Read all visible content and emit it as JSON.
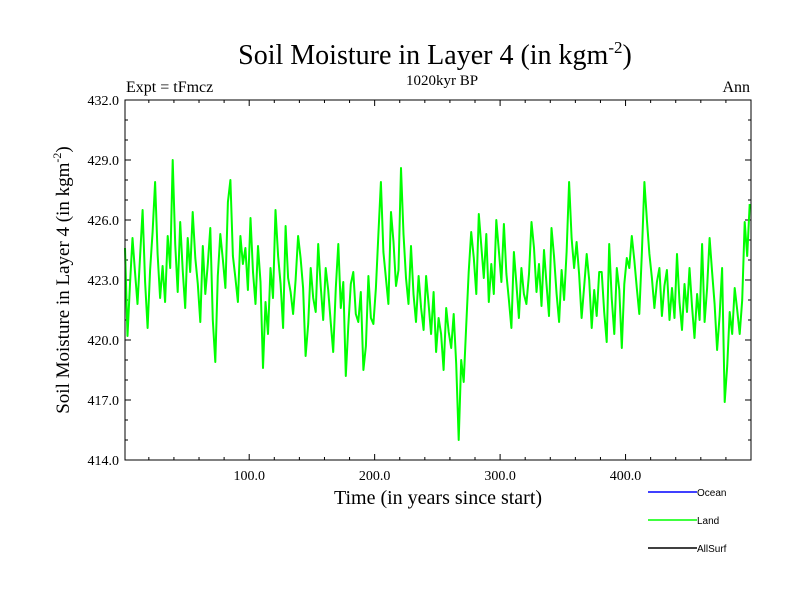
{
  "chart_data": {
    "type": "line",
    "title": "Soil Moisture in Layer 4 (in kgm",
    "title_sup": "-2",
    "title_suffix": ")",
    "subtitle": "1020kyr BP",
    "left_label": "Expt = tFmcz",
    "right_label": "Ann",
    "xlabel": "Time (in years since start)",
    "ylabel": "Soil Moisture in Layer 4 (in kgm",
    "ylabel_sup": "-2",
    "ylabel_suffix": ")",
    "xlim": [
      1,
      500
    ],
    "ylim": [
      414.0,
      432.0
    ],
    "x_ticks": [
      100,
      200,
      300,
      400
    ],
    "x_tick_labels": [
      "100.0",
      "200.0",
      "300.0",
      "400.0"
    ],
    "y_ticks": [
      414,
      417,
      420,
      423,
      426,
      429,
      432
    ],
    "y_tick_labels": [
      "414.0",
      "417.0",
      "420.0",
      "423.0",
      "426.0",
      "429.0",
      "432.0"
    ],
    "legend": [
      {
        "name": "Ocean",
        "color": "#0000ff"
      },
      {
        "name": "Land",
        "color": "#00ff00"
      },
      {
        "name": "AllSurf",
        "color": "#000000"
      }
    ],
    "series": [
      {
        "name": "Land",
        "color": "#00ff00",
        "x_start": 1,
        "x_step": 2,
        "values": [
          424.6,
          420.2,
          422.8,
          425.1,
          423.4,
          421.8,
          424.2,
          426.5,
          422.9,
          420.6,
          423.5,
          425.4,
          427.9,
          424.3,
          422.1,
          423.7,
          421.9,
          425.2,
          423.6,
          429.0,
          424.8,
          422.4,
          425.9,
          423.5,
          421.6,
          425.1,
          423.4,
          426.4,
          424.1,
          422.8,
          420.9,
          424.7,
          422.3,
          423.8,
          425.6,
          421.0,
          418.9,
          423.2,
          425.3,
          424.0,
          422.6,
          426.9,
          428.0,
          424.2,
          423.1,
          421.9,
          425.2,
          423.8,
          424.6,
          422.5,
          426.1,
          423.4,
          421.8,
          424.7,
          422.9,
          418.6,
          421.9,
          420.3,
          423.6,
          422.1,
          426.5,
          424.2,
          422.8,
          420.6,
          425.7,
          423.1,
          422.4,
          421.3,
          423.0,
          425.2,
          424.1,
          422.6,
          419.2,
          420.8,
          423.6,
          422.1,
          421.4,
          424.8,
          422.7,
          421.0,
          423.6,
          422.5,
          420.9,
          419.4,
          422.6,
          424.8,
          421.6,
          422.9,
          418.2,
          420.7,
          422.8,
          423.4,
          421.3,
          420.9,
          422.4,
          418.5,
          419.7,
          423.2,
          421.1,
          420.8,
          422.6,
          425.3,
          427.9,
          424.4,
          423.1,
          421.8,
          426.4,
          424.9,
          422.7,
          423.5,
          428.6,
          425.3,
          423.1,
          421.8,
          424.7,
          422.3,
          420.9,
          423.2,
          421.6,
          420.5,
          423.2,
          421.8,
          420.3,
          422.4,
          419.4,
          421.1,
          420.3,
          418.5,
          421.6,
          420.4,
          419.6,
          421.3,
          418.8,
          415.0,
          419.0,
          417.9,
          420.7,
          423.4,
          425.4,
          424.1,
          422.3,
          426.3,
          424.7,
          423.1,
          425.3,
          421.9,
          423.8,
          422.3,
          426.0,
          424.5,
          422.9,
          425.8,
          423.3,
          422.0,
          420.6,
          424.4,
          422.8,
          421.1,
          423.6,
          422.3,
          421.8,
          423.3,
          425.9,
          424.6,
          422.4,
          423.8,
          421.7,
          424.5,
          422.8,
          421.2,
          425.6,
          424.2,
          422.3,
          420.9,
          423.5,
          422.0,
          424.4,
          427.9,
          425.1,
          423.6,
          424.9,
          423.3,
          421.1,
          422.7,
          424.3,
          423.0,
          420.6,
          422.5,
          421.2,
          423.4,
          423.4,
          421.4,
          419.9,
          424.8,
          422.1,
          420.3,
          423.6,
          422.5,
          419.6,
          422.8,
          424.1,
          423.6,
          425.2,
          424.0,
          422.6,
          421.3,
          424.4,
          427.9,
          426.0,
          424.3,
          423.1,
          421.6,
          422.9,
          423.6,
          421.2,
          422.7,
          423.5,
          421.0,
          422.6,
          421.1,
          424.3,
          421.9,
          420.5,
          422.8,
          421.4,
          423.6,
          421.7,
          420.1,
          422.3,
          421.0,
          424.8,
          420.9,
          422.6,
          425.1,
          423.4,
          421.8,
          419.5,
          421.2,
          423.6,
          416.9,
          418.7,
          421.4,
          420.3,
          422.6,
          421.5,
          420.3,
          422.0,
          425.9,
          424.2,
          426.8
        ]
      }
    ]
  }
}
